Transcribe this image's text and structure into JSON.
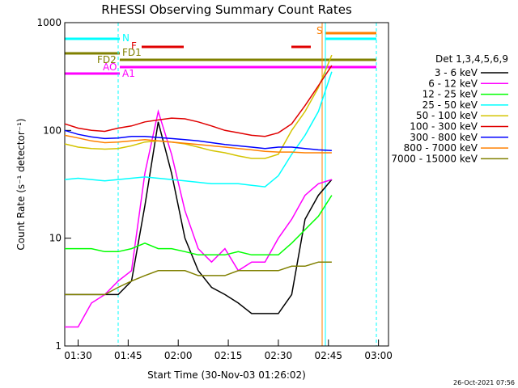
{
  "chart_data": {
    "type": "line",
    "title": "RHESSI Observing Summary Count Rates",
    "xlabel": "Start Time (30-Nov-03 01:26:02)",
    "ylabel": "Count Rate (s⁻¹ detector⁻¹)",
    "footer": "26-Oct-2021 07:56",
    "legend_title": "Det 1,3,4,5,6,9",
    "flag_labels": [
      "N",
      "F",
      "FD1",
      "FD2",
      "AO",
      "A1",
      "S"
    ],
    "log_y": true,
    "x": [
      "01:26",
      "01:30",
      "01:34",
      "01:38",
      "01:42",
      "01:46",
      "01:50",
      "01:54",
      "01:58",
      "02:02",
      "02:06",
      "02:10",
      "02:14",
      "02:18",
      "02:22",
      "02:26",
      "02:30",
      "02:34",
      "02:38",
      "02:42",
      "02:46"
    ],
    "xlim": [
      "01:26",
      "03:03"
    ],
    "xticks": [
      "01:30",
      "01:45",
      "02:00",
      "02:15",
      "02:30",
      "02:45",
      "03:00"
    ],
    "ylim": [
      1,
      1000
    ],
    "yticks": [
      1,
      10,
      100,
      1000
    ],
    "series": [
      {
        "name": "3 - 6 keV",
        "color": "#000000",
        "values": [
          3,
          3,
          3,
          3,
          3,
          4,
          20,
          120,
          40,
          10,
          5,
          3.5,
          3,
          2.5,
          2,
          2,
          2,
          3,
          15,
          25,
          35
        ]
      },
      {
        "name": "6 - 12 keV",
        "color": "#ff00ff",
        "values": [
          1.5,
          1.5,
          2.5,
          3,
          4,
          5,
          40,
          150,
          60,
          18,
          8,
          6,
          8,
          5,
          6,
          6,
          10,
          15,
          25,
          32,
          35
        ]
      },
      {
        "name": "12 - 25 keV",
        "color": "#00ff00",
        "values": [
          8,
          8,
          8,
          7.5,
          7.5,
          8,
          9,
          8,
          8,
          7.5,
          7,
          7,
          7,
          7.5,
          7,
          7,
          7,
          9,
          12,
          16,
          25
        ]
      },
      {
        "name": "25 - 50 keV",
        "color": "#00ffff",
        "values": [
          35,
          36,
          35,
          34,
          35,
          36,
          37,
          36,
          35,
          34,
          33,
          32,
          32,
          32,
          31,
          30,
          38,
          60,
          90,
          150,
          350
        ]
      },
      {
        "name": "50 - 100 keV",
        "color": "#d4c400",
        "values": [
          75,
          70,
          68,
          67,
          68,
          72,
          78,
          80,
          78,
          75,
          70,
          65,
          62,
          58,
          55,
          55,
          60,
          100,
          150,
          250,
          500
        ]
      },
      {
        "name": "100 - 300 keV",
        "color": "#e00000",
        "values": [
          115,
          105,
          100,
          98,
          105,
          110,
          120,
          125,
          130,
          128,
          120,
          110,
          100,
          95,
          90,
          88,
          95,
          115,
          170,
          260,
          400
        ]
      },
      {
        "name": "300 - 800 keV",
        "color": "#0000ff",
        "values": [
          100,
          92,
          87,
          84,
          85,
          88,
          88,
          86,
          84,
          82,
          80,
          77,
          74,
          72,
          70,
          68,
          70,
          70,
          68,
          66,
          65
        ]
      },
      {
        "name": "800 - 7000 keV",
        "color": "#ff8000",
        "values": [
          90,
          85,
          80,
          77,
          78,
          80,
          82,
          80,
          78,
          76,
          74,
          72,
          70,
          68,
          66,
          64,
          63,
          63,
          62,
          62,
          62
        ]
      },
      {
        "name": "7000 - 15000 keV",
        "color": "#808000",
        "values": [
          3,
          3,
          3,
          3,
          3.5,
          4,
          4.5,
          5,
          5,
          5,
          4.5,
          4.5,
          4.5,
          5,
          5,
          5,
          5,
          5.5,
          5.5,
          6,
          6
        ]
      }
    ]
  }
}
